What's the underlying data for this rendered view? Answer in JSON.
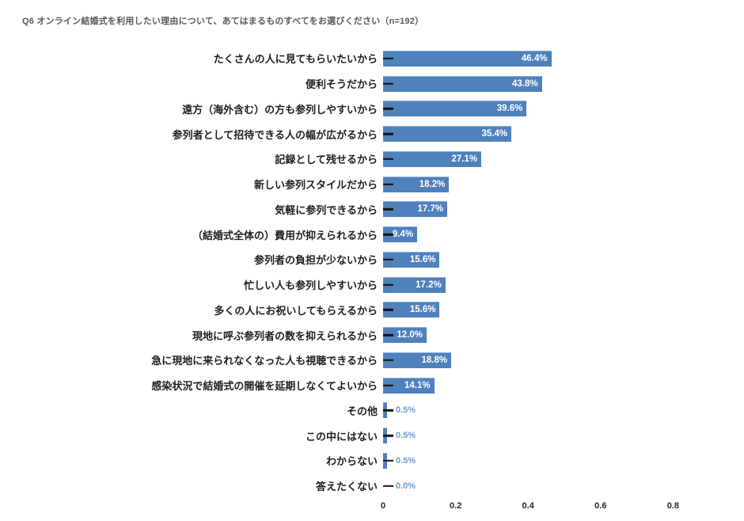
{
  "title": "Q6 オンライン結婚式を利用したい理由について、あてはまるものすべてをお選びください（n=192）",
  "colors": {
    "bar": "#4F81BD",
    "value_inside_text": "#FFFFFF",
    "value_outside_text": "#7498C8",
    "tick_dash": "#141414",
    "category_label": "#1F1F1F",
    "title_text": "#595959",
    "axis_tick_text": "#262626",
    "background": "#FFFFFF"
  },
  "chart_data": {
    "type": "bar",
    "orientation": "horizontal",
    "title": "Q6 オンライン結婚式を利用したい理由について、あてはまるものすべてをお選びください（n=192）",
    "n": 192,
    "categories": [
      "たくさんの人に見てもらいたいから",
      "便利そうだから",
      "遠方（海外含む）の方も参列しやすいから",
      "参列者として招待できる人の幅が広がるから",
      "記録として残せるから",
      "新しい参列スタイルだから",
      "気軽に参列できるから",
      "（結婚式全体の）費用が抑えられるから",
      "参列者の負担が少ないから",
      "忙しい人も参列しやすいから",
      "多くの人にお祝いしてもらえるから",
      "現地に呼ぶ参列者の数を抑えられるから",
      "急に現地に来られなくなった人も視聴できるから",
      "感染状況で結婚式の開催を延期しなくてよいから",
      "その他",
      "この中にはない",
      "わからない",
      "答えたくない"
    ],
    "values": [
      0.464,
      0.438,
      0.396,
      0.354,
      0.271,
      0.182,
      0.177,
      0.094,
      0.156,
      0.172,
      0.156,
      0.12,
      0.188,
      0.141,
      0.005,
      0.005,
      0.005,
      0.0
    ],
    "value_labels": [
      "46.4%",
      "43.8%",
      "39.6%",
      "35.4%",
      "27.1%",
      "18.2%",
      "17.7%",
      "9.4%",
      "15.6%",
      "17.2%",
      "15.6%",
      "12.0%",
      "18.8%",
      "14.1%",
      "0.5%",
      "0.5%",
      "0.5%",
      "0.0%"
    ],
    "x_ticks": [
      0,
      0.2,
      0.4,
      0.6,
      0.8
    ],
    "x_tick_labels": [
      "0",
      "0.2",
      "0.4",
      "0.6",
      "0.8"
    ],
    "xlim": [
      0,
      0.995
    ],
    "grid": false,
    "legend": false,
    "bar_color": "#4F81BD"
  }
}
